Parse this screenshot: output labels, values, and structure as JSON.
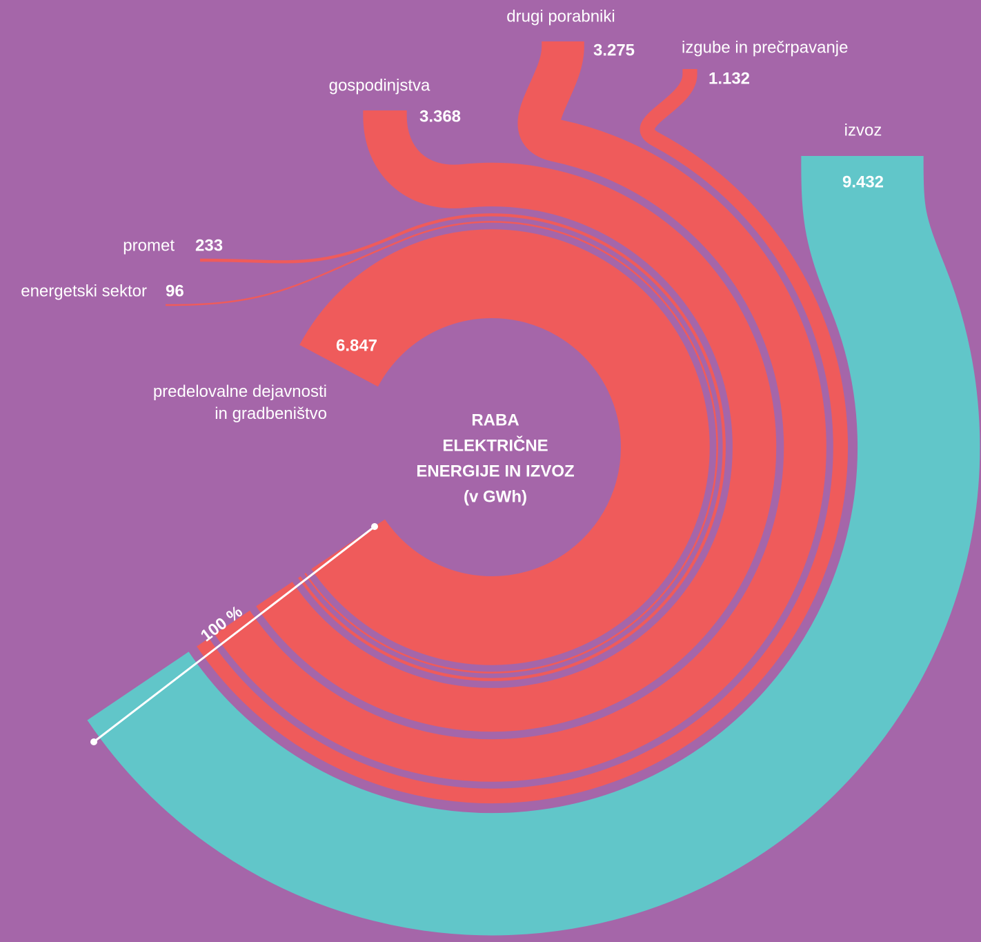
{
  "chart_data": {
    "type": "sankey",
    "title": [
      "RABA",
      "ELEKTRIČNE",
      "ENERGIJE IN IZVOZ",
      "(v GWh)"
    ],
    "annotation": "100 %",
    "categories": [
      "predelovalne dejavnosti\nin gradbeništvo",
      "energetski sektor",
      "promet",
      "gospodinjstva",
      "drugi porabniki",
      "izgube in prečrpavanje",
      "izvoz"
    ],
    "values": [
      6847,
      96,
      233,
      3368,
      3275,
      1132,
      9432
    ],
    "value_labels": [
      "6.847",
      "96",
      "233",
      "3.368",
      "3.275",
      "1.132",
      "9.432"
    ],
    "colors": [
      "#ef5b5b",
      "#ef5b5b",
      "#ef5b5b",
      "#ef5b5b",
      "#ef5b5b",
      "#ef5b5b",
      "#61c6c9"
    ]
  }
}
